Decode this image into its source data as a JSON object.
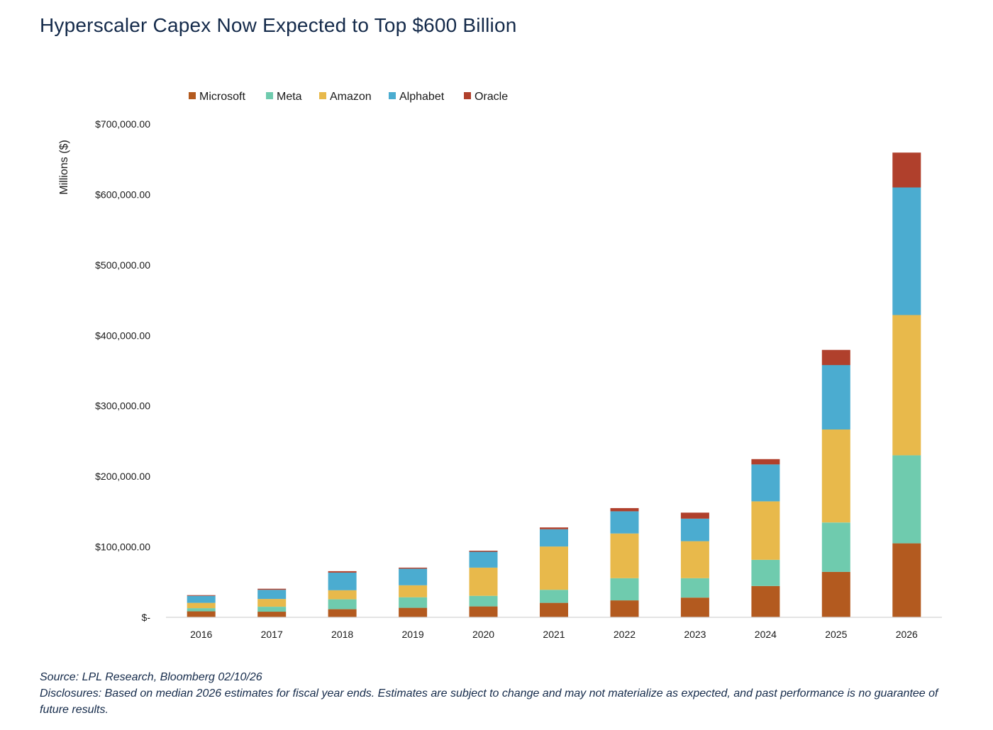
{
  "chart_data": {
    "type": "bar",
    "stacked": true,
    "title": "Hyperscaler Capex Now Expected to Top $600 Billion",
    "ylabel": "Millions ($)",
    "xlabel": "",
    "ylim": [
      0,
      700000
    ],
    "yticks": [
      0,
      100000,
      200000,
      300000,
      400000,
      500000,
      600000,
      700000
    ],
    "ytick_labels": [
      "$-",
      "$100,000.00",
      "$200,000.00",
      "$300,000.00",
      "$400,000.00",
      "$500,000.00",
      "$600,000.00",
      "$700,000.00"
    ],
    "grid": false,
    "legend_position": "top-left",
    "categories": [
      "2016",
      "2017",
      "2018",
      "2019",
      "2020",
      "2021",
      "2022",
      "2023",
      "2024",
      "2025",
      "2026"
    ],
    "series": [
      {
        "name": "Microsoft",
        "color": "#b35a1f",
        "values": [
          8500,
          8000,
          11500,
          13500,
          15500,
          20500,
          24000,
          28000,
          44500,
          64500,
          105000
        ]
      },
      {
        "name": "Meta",
        "color": "#6fcbae",
        "values": [
          4500,
          7000,
          14000,
          15000,
          15000,
          18500,
          31500,
          27500,
          37000,
          70000,
          125000
        ]
      },
      {
        "name": "Amazon",
        "color": "#e8b94b",
        "values": [
          7500,
          11000,
          13000,
          17000,
          40000,
          61500,
          63500,
          52500,
          83000,
          132000,
          199000
        ]
      },
      {
        "name": "Alphabet",
        "color": "#4bacd0",
        "values": [
          10000,
          13000,
          25000,
          23500,
          22500,
          24500,
          31500,
          32000,
          52500,
          91500,
          181000
        ]
      },
      {
        "name": "Oracle",
        "color": "#b0402c",
        "values": [
          1000,
          1500,
          2000,
          1500,
          1500,
          2500,
          4500,
          8500,
          7500,
          21500,
          49500
        ]
      }
    ]
  },
  "footnote": {
    "source": "Source: LPL Research, Bloomberg 02/10/26",
    "disclosure": "Disclosures: Based on median 2026 estimates for fiscal year ends. Estimates are subject to change and may not materialize as expected, and past performance is no guarantee of future results."
  }
}
